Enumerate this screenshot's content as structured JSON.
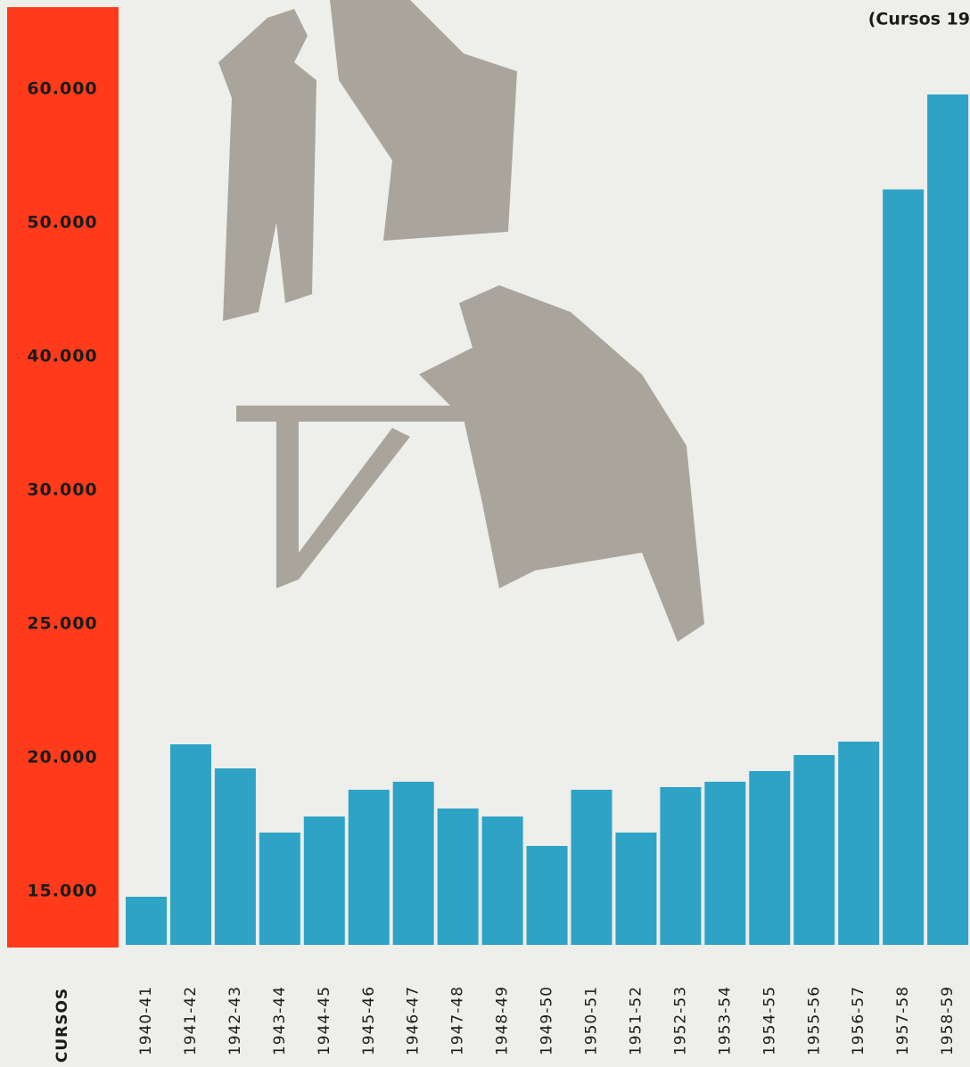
{
  "chart_data": {
    "type": "bar",
    "title": "(Cursos 19",
    "x_label": "CURSOS",
    "categories": [
      "1940-41",
      "1941-42",
      "1942-43",
      "1943-44",
      "1944-45",
      "1945-46",
      "1946-47",
      "1947-48",
      "1948-49",
      "1949-50",
      "1950-51",
      "1951-52",
      "1952-53",
      "1953-54",
      "1954-55",
      "1955-56",
      "1956-57",
      "1957-58",
      "1958-59"
    ],
    "values": [
      14800,
      20500,
      19600,
      17200,
      17800,
      18800,
      19100,
      18100,
      17800,
      16700,
      18800,
      17200,
      18900,
      19100,
      19500,
      20100,
      20600,
      52500,
      59600
    ],
    "color": "#2ea3c6",
    "ylim": [
      13000,
      66000
    ],
    "yticks": [
      {
        "value": 15000,
        "label": "15.000"
      },
      {
        "value": 20000,
        "label": "20.000"
      },
      {
        "value": 25000,
        "label": "25.000"
      },
      {
        "value": 30000,
        "label": "30.000"
      },
      {
        "value": 40000,
        "label": "40.000"
      },
      {
        "value": 50000,
        "label": "50.000"
      },
      {
        "value": 60000,
        "label": "60.000"
      }
    ],
    "grid": false
  }
}
